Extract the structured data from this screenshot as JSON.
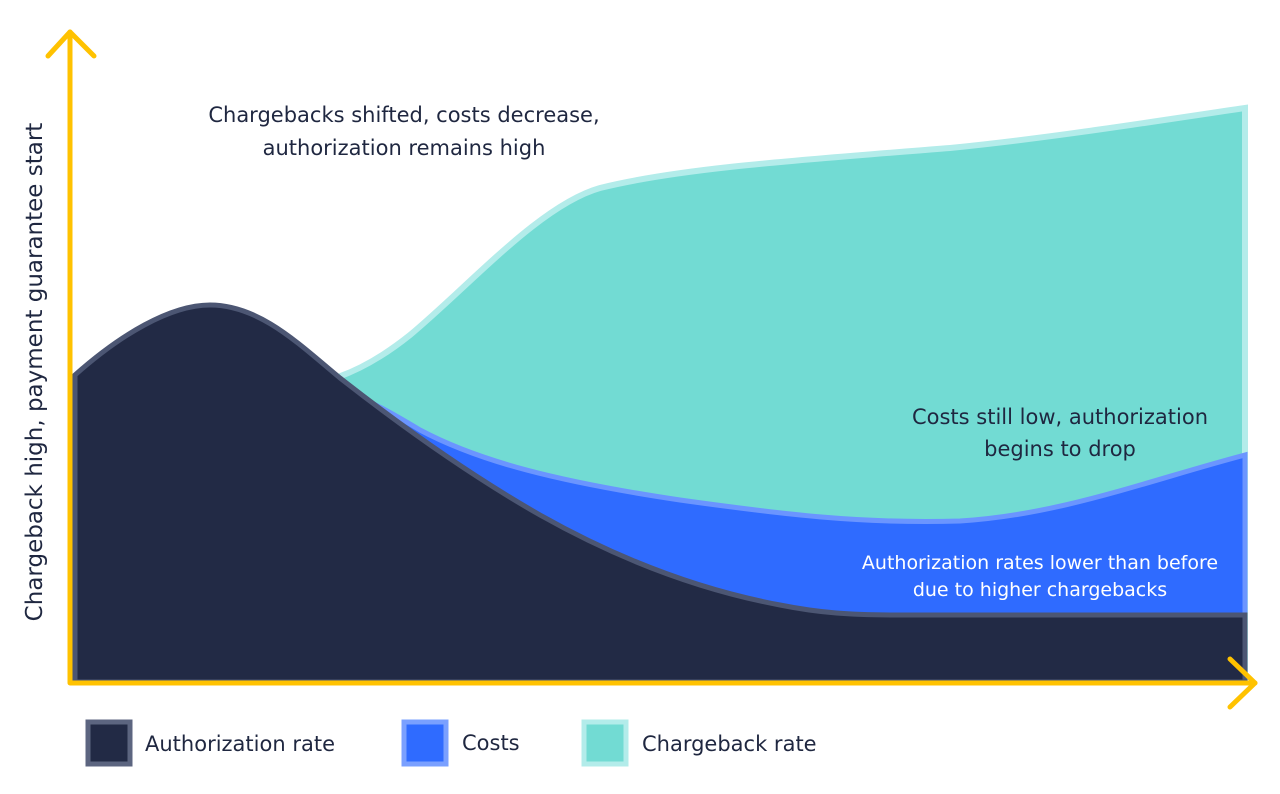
{
  "y_axis_label": "Chargeback high, payment guarantee start",
  "annotations": [
    "Chargebacks shifted, costs decrease,",
    "authorization remains high",
    "Costs still low, authorization",
    "begins to drop",
    "Authorization rates lower than before",
    "due to higher chargebacks"
  ],
  "legend": [
    "Authorization rate",
    "Costs",
    "Chargeback rate"
  ]
}
